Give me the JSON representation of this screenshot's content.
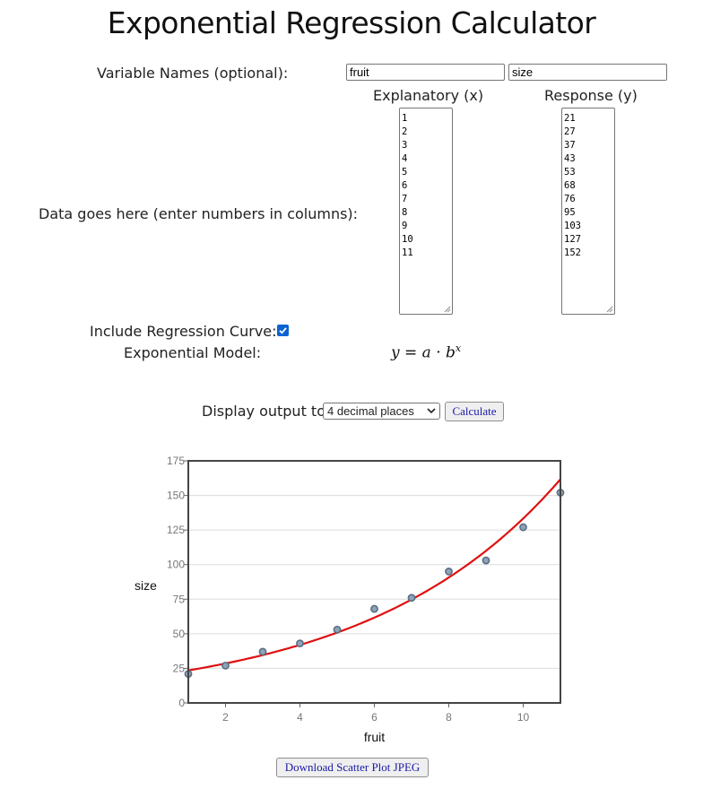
{
  "page": {
    "title": "Exponential Regression Calculator"
  },
  "variable_names": {
    "label": "Variable Names (optional):",
    "x_value": "fruit",
    "y_value": "size"
  },
  "data_entry": {
    "label": "Data goes here (enter numbers in columns):",
    "x_header": "Explanatory (x)",
    "y_header": "Response (y)",
    "x_values": "1\n2\n3\n4\n5\n6\n7\n8\n9\n10\n11",
    "y_values": "21\n27\n37\n43\n53\n68\n76\n95\n103\n127\n152"
  },
  "regression": {
    "include_label": "Include Regression Curve:",
    "include_checked": true,
    "model_label": "Exponential Model:"
  },
  "output": {
    "display_label": "Display output to",
    "decimal_option": "4 decimal places",
    "calculate_label": "Calculate"
  },
  "download_label": "Download Scatter Plot JPEG",
  "colors": {
    "curve": "#e01010",
    "point_fill": "#8fa3b8",
    "point_stroke": "#5a6e82",
    "check": "#0b63d1",
    "button_text": "#1a1aa6"
  },
  "icons": {
    "check": "checkmark-icon",
    "dropdown": "chevron-down-icon",
    "resize": "resize-grip-icon"
  },
  "chart_data": {
    "type": "scatter",
    "xlabel": "fruit",
    "ylabel": "size",
    "xlim": [
      1,
      11
    ],
    "ylim": [
      0,
      175
    ],
    "x_ticks": [
      2,
      4,
      6,
      8,
      10
    ],
    "y_ticks": [
      0,
      25,
      50,
      75,
      100,
      125,
      150,
      175
    ],
    "grid": true,
    "series": [
      {
        "x": [
          1,
          2,
          3,
          4,
          5,
          6,
          7,
          8,
          9,
          10,
          11
        ],
        "y": [
          21,
          27,
          37,
          43,
          53,
          68,
          76,
          95,
          103,
          127,
          152
        ]
      }
    ],
    "regression_curve": {
      "model": "exponential",
      "a": 19.4,
      "b": 1.2126
    }
  }
}
